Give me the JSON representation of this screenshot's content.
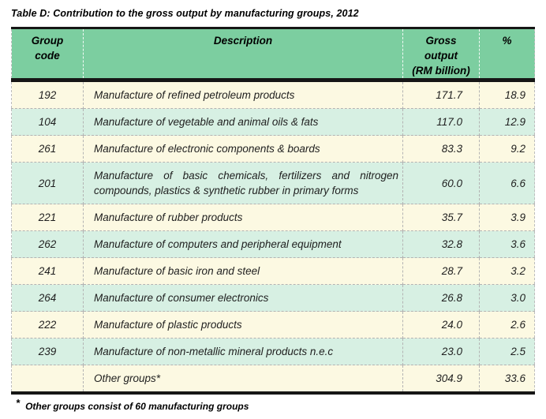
{
  "title": "Table D: Contribution to the gross output by manufacturing groups, 2012",
  "table": {
    "headers": {
      "group_code": "Group\ncode",
      "description": "Description",
      "gross_output": "Gross\noutput\n(RM billion)",
      "percent": "%"
    },
    "rows": [
      {
        "code": "192",
        "description": "Manufacture of refined petroleum products",
        "output": "171.7",
        "pct": "18.9"
      },
      {
        "code": "104",
        "description": "Manufacture of vegetable and animal oils & fats",
        "output": "117.0",
        "pct": "12.9"
      },
      {
        "code": "261",
        "description": "Manufacture of electronic components & boards",
        "output": "83.3",
        "pct": "9.2"
      },
      {
        "code": "201",
        "description": "Manufacture of basic chemicals, fertilizers and nitrogen compounds, plastics & synthetic rubber in primary forms",
        "output": "60.0",
        "pct": "6.6"
      },
      {
        "code": "221",
        "description": "Manufacture of rubber products",
        "output": "35.7",
        "pct": "3.9"
      },
      {
        "code": "262",
        "description": "Manufacture of computers and peripheral equipment",
        "output": "32.8",
        "pct": "3.6"
      },
      {
        "code": "241",
        "description": "Manufacture of basic iron and steel",
        "output": "28.7",
        "pct": "3.2"
      },
      {
        "code": "264",
        "description": "Manufacture of consumer electronics",
        "output": "26.8",
        "pct": "3.0"
      },
      {
        "code": "222",
        "description": "Manufacture of plastic products",
        "output": "24.0",
        "pct": "2.6"
      },
      {
        "code": "239",
        "description": "Manufacture of non-metallic mineral products n.e.c",
        "output": "23.0",
        "pct": "2.5"
      },
      {
        "code": "",
        "description": "Other groups*",
        "output": "304.9",
        "pct": "33.6"
      }
    ]
  },
  "footnote": {
    "marker": "*",
    "text": "Other groups consist of 60 manufacturing groups"
  },
  "colors": {
    "header_bg": "#7CCEA0",
    "row_cream": "#FCF9E2",
    "row_mint": "#D7F0E3",
    "border_black": "#161616",
    "dash_gray": "#B3B3B3"
  }
}
